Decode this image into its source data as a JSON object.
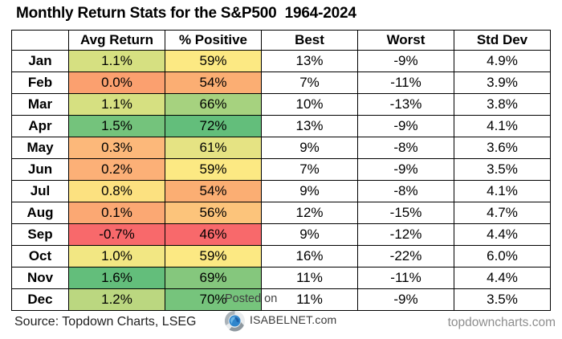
{
  "title": "Monthly Return Stats for the S&P500  1964-2024",
  "table": {
    "columns": [
      "",
      "Avg Return",
      "% Positive",
      "Best",
      "Worst",
      "Std Dev"
    ],
    "rows": [
      {
        "month": "Jan",
        "avg_return": "1.1%",
        "avg_color": "#D6E081",
        "pct_positive": "59%",
        "pct_color": "#FCE983",
        "best": "13%",
        "worst": "-9%",
        "std_dev": "4.9%"
      },
      {
        "month": "Feb",
        "avg_return": "0.0%",
        "avg_color": "#FBA06F",
        "pct_positive": "54%",
        "pct_color": "#FBAE73",
        "best": "7%",
        "worst": "-11%",
        "std_dev": "3.9%"
      },
      {
        "month": "Mar",
        "avg_return": "1.1%",
        "avg_color": "#D6E081",
        "pct_positive": "66%",
        "pct_color": "#A6D27F",
        "best": "10%",
        "worst": "-13%",
        "std_dev": "3.8%"
      },
      {
        "month": "Apr",
        "avg_return": "1.5%",
        "avg_color": "#74C37C",
        "pct_positive": "72%",
        "pct_color": "#63BE7B",
        "best": "13%",
        "worst": "-9%",
        "std_dev": "4.1%"
      },
      {
        "month": "May",
        "avg_return": "0.3%",
        "avg_color": "#FCB87A",
        "pct_positive": "61%",
        "pct_color": "#E5E383",
        "best": "9%",
        "worst": "-8%",
        "std_dev": "3.6%"
      },
      {
        "month": "Jun",
        "avg_return": "0.2%",
        "avg_color": "#FCB077",
        "pct_positive": "59%",
        "pct_color": "#FCE983",
        "best": "7%",
        "worst": "-9%",
        "std_dev": "3.5%"
      },
      {
        "month": "Jul",
        "avg_return": "0.8%",
        "avg_color": "#FCE180",
        "pct_positive": "54%",
        "pct_color": "#FBAE73",
        "best": "9%",
        "worst": "-8%",
        "std_dev": "4.1%"
      },
      {
        "month": "Aug",
        "avg_return": "0.1%",
        "avg_color": "#FBA873",
        "pct_positive": "56%",
        "pct_color": "#FCC47B",
        "best": "12%",
        "worst": "-15%",
        "std_dev": "4.7%"
      },
      {
        "month": "Sep",
        "avg_return": "-0.7%",
        "avg_color": "#F8696B",
        "pct_positive": "46%",
        "pct_color": "#F8696B",
        "best": "9%",
        "worst": "-12%",
        "std_dev": "4.4%"
      },
      {
        "month": "Oct",
        "avg_return": "1.0%",
        "avg_color": "#F2E783",
        "pct_positive": "59%",
        "pct_color": "#FCE983",
        "best": "16%",
        "worst": "-22%",
        "std_dev": "6.0%"
      },
      {
        "month": "Nov",
        "avg_return": "1.6%",
        "avg_color": "#63BE7B",
        "pct_positive": "69%",
        "pct_color": "#85C77D",
        "best": "11%",
        "worst": "-11%",
        "std_dev": "4.4%"
      },
      {
        "month": "Dec",
        "avg_return": "1.2%",
        "avg_color": "#BBD780",
        "pct_positive": "70%",
        "pct_color": "#76C47C",
        "best": "11%",
        "worst": "-9%",
        "std_dev": "3.5%"
      }
    ]
  },
  "chart_data": {
    "type": "table",
    "title": "Monthly Return Stats for the S&P500  1964-2024",
    "categories": [
      "Jan",
      "Feb",
      "Mar",
      "Apr",
      "May",
      "Jun",
      "Jul",
      "Aug",
      "Sep",
      "Oct",
      "Nov",
      "Dec"
    ],
    "series": [
      {
        "name": "Avg Return",
        "unit": "%",
        "values": [
          1.1,
          0.0,
          1.1,
          1.5,
          0.3,
          0.2,
          0.8,
          0.1,
          -0.7,
          1.0,
          1.6,
          1.2
        ]
      },
      {
        "name": "% Positive",
        "unit": "%",
        "values": [
          59,
          54,
          66,
          72,
          61,
          59,
          54,
          56,
          46,
          59,
          69,
          70
        ]
      },
      {
        "name": "Best",
        "unit": "%",
        "values": [
          13,
          7,
          10,
          13,
          9,
          7,
          9,
          12,
          9,
          16,
          11,
          11
        ]
      },
      {
        "name": "Worst",
        "unit": "%",
        "values": [
          -9,
          -11,
          -13,
          -9,
          -8,
          -9,
          -8,
          -15,
          -12,
          -22,
          -11,
          -9
        ]
      },
      {
        "name": "Std Dev",
        "unit": "%",
        "values": [
          4.9,
          3.9,
          3.8,
          4.1,
          3.6,
          3.5,
          4.1,
          4.7,
          4.4,
          6.0,
          4.4,
          3.5
        ]
      }
    ],
    "heatmap_columns": [
      "Avg Return",
      "% Positive"
    ],
    "color_scale": {
      "min": "#F8696B",
      "mid": "#FFEB84",
      "max": "#63BE7B"
    }
  },
  "footer": {
    "source": "Source: Topdown Charts, LSEG",
    "site": "topdowncharts.com",
    "watermark": {
      "posted_on": "Posted on",
      "brand": "ISABELNET.com"
    }
  }
}
